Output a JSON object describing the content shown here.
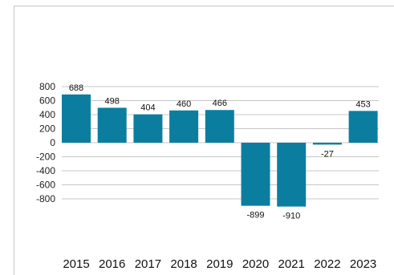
{
  "chart_data": {
    "type": "bar",
    "categories": [
      "2015",
      "2016",
      "2017",
      "2018",
      "2019",
      "2020",
      "2021",
      "2022",
      "2023"
    ],
    "values": [
      688,
      498,
      404,
      460,
      466,
      -899,
      -910,
      -27,
      453
    ],
    "data_labels": [
      "688",
      "498",
      "404",
      "460",
      "466",
      "-899",
      "-910",
      "-27",
      "453"
    ],
    "yticks": [
      800,
      600,
      400,
      200,
      0,
      -200,
      -400,
      -600,
      -800
    ],
    "ytick_labels": [
      "800",
      "600",
      "400",
      "200",
      "0",
      "-200",
      "-400",
      "-600",
      "-800"
    ],
    "ylim": [
      -900,
      900
    ],
    "grid": true,
    "legend": "none",
    "title": "",
    "xlabel": "",
    "ylabel": "",
    "colors": {
      "bar": "#0b7ea0",
      "grid": "#c7c7c7",
      "frame": "#c6c6c6"
    }
  }
}
